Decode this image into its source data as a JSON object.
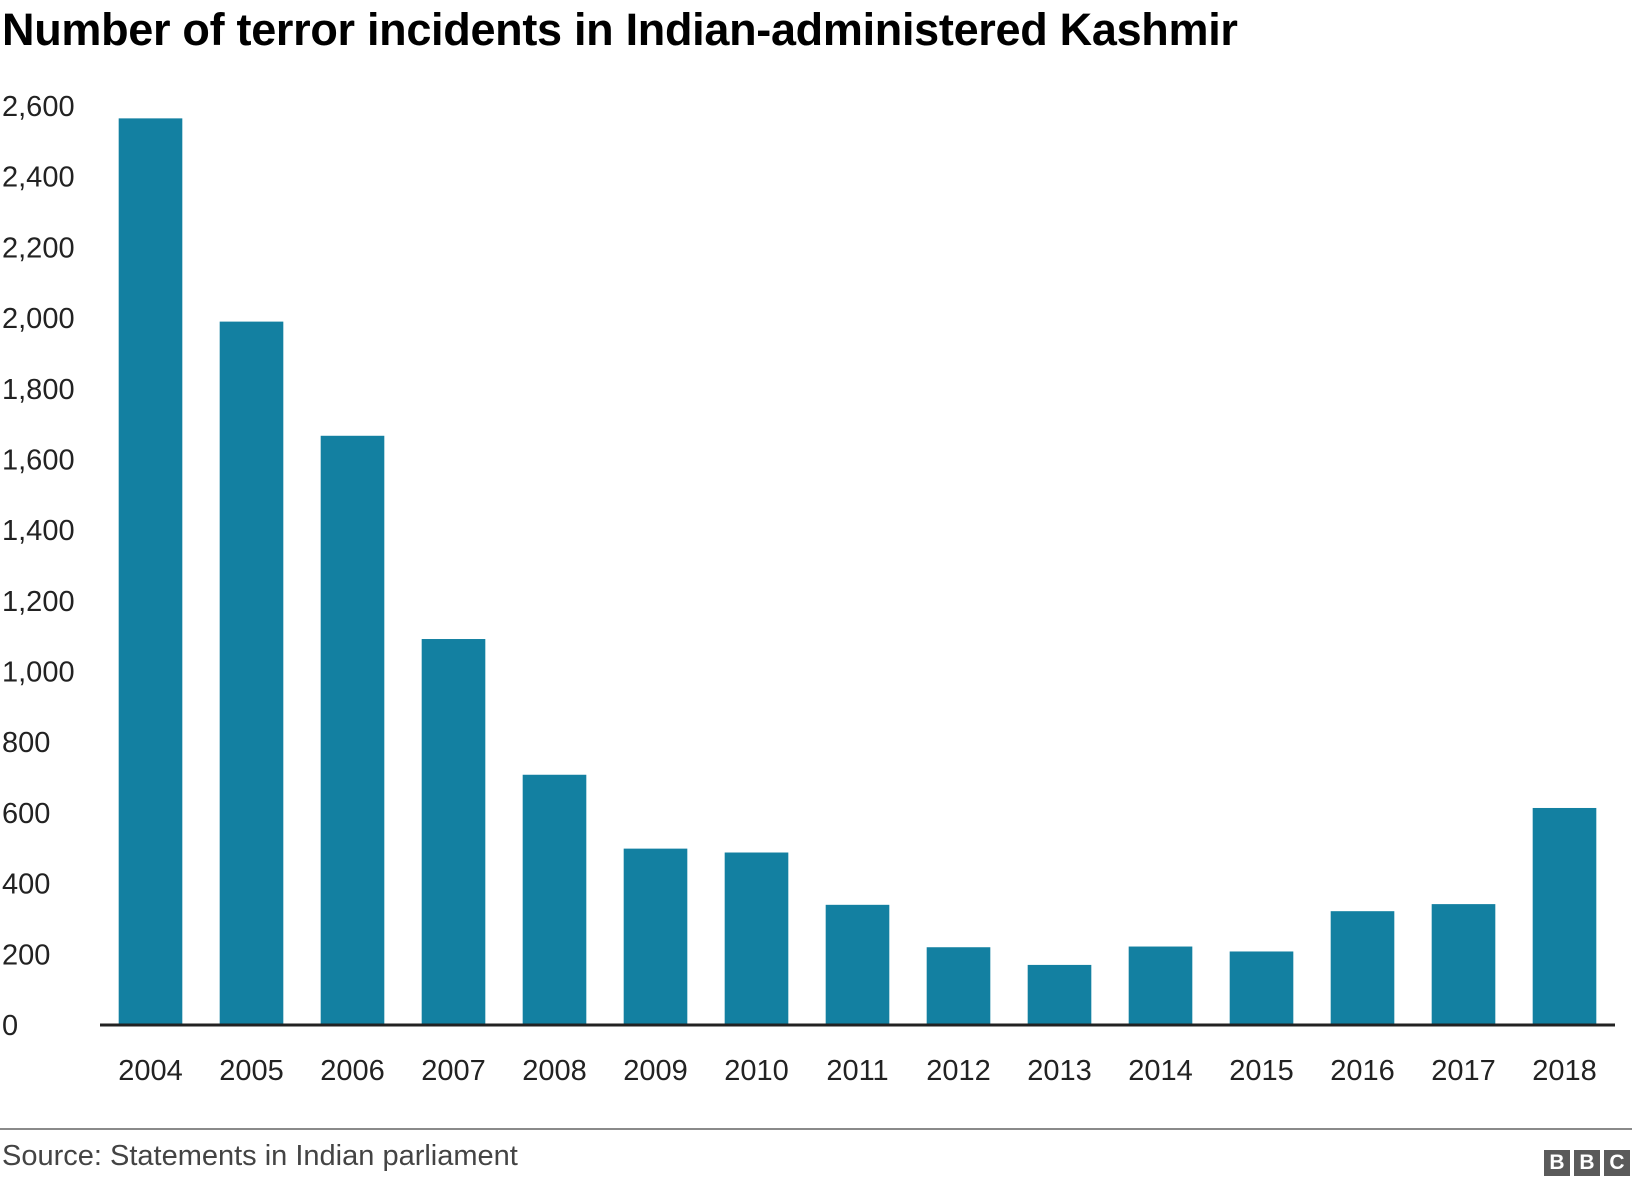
{
  "chart_data": {
    "type": "bar",
    "title": "Number of terror incidents in Indian-administered Kashmir",
    "categories": [
      "2004",
      "2005",
      "2006",
      "2007",
      "2008",
      "2009",
      "2010",
      "2011",
      "2012",
      "2013",
      "2014",
      "2015",
      "2016",
      "2017",
      "2018"
    ],
    "values": [
      2565,
      1990,
      1667,
      1092,
      708,
      499,
      488,
      340,
      220,
      170,
      222,
      208,
      322,
      342,
      614
    ],
    "ylim": [
      0,
      2600
    ],
    "yticks": [
      0,
      200,
      400,
      600,
      800,
      1000,
      1200,
      1400,
      1600,
      1800,
      2000,
      2200,
      2400,
      2600
    ],
    "ytick_labels": [
      "0",
      "200",
      "400",
      "600",
      "800",
      "1,000",
      "1,200",
      "1,400",
      "1,600",
      "1,800",
      "2,000",
      "2,200",
      "2,400",
      "2,600"
    ],
    "grid": false,
    "bar_color": "#1380a1",
    "source": "Source: Statements in Indian parliament"
  },
  "branding": {
    "logo": "BBC",
    "logo_letters": [
      "B",
      "B",
      "C"
    ]
  }
}
